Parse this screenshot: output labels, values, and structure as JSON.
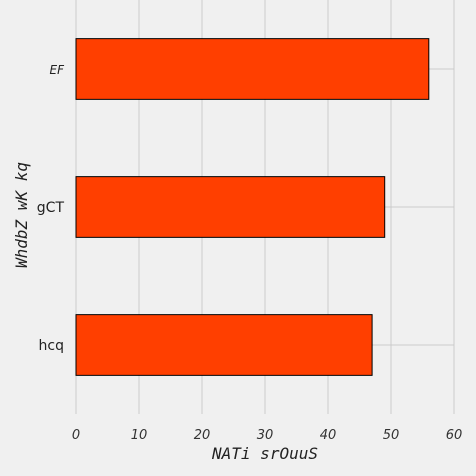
{
  "colors": {
    "background": "#f0f0f0",
    "bar": "#ff3f00",
    "bar_edge": "#000000",
    "grid": "#cbcbcb"
  },
  "chart_data": {
    "type": "bar",
    "orientation": "horizontal",
    "categories": [
      "hcq",
      "gCT",
      "EF"
    ],
    "values": [
      47,
      49,
      56
    ],
    "xlabel": "NATi srOuuS",
    "ylabel": "WhdbZ wK kq",
    "xlim": [
      0,
      60
    ],
    "xticks": [
      0,
      10,
      20,
      30,
      40,
      50,
      60
    ],
    "grid": true,
    "legend": "none"
  }
}
